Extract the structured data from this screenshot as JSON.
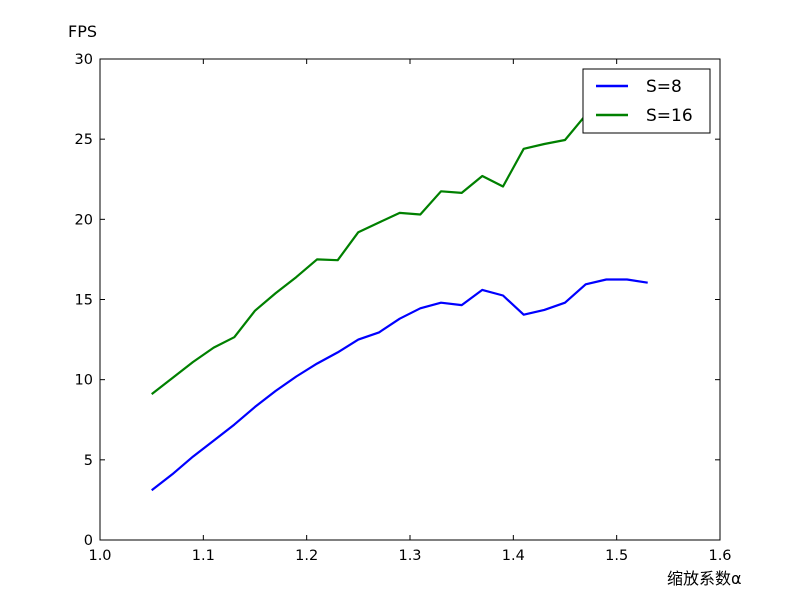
{
  "chart_data": {
    "type": "line",
    "title": "",
    "xlabel": "缩放系数α",
    "ylabel": "FPS",
    "xlim": [
      1.0,
      1.6
    ],
    "ylim": [
      0,
      30
    ],
    "xticks": [
      "1.0",
      "1.1",
      "1.2",
      "1.3",
      "1.4",
      "1.5",
      "1.6"
    ],
    "yticks": [
      "0",
      "5",
      "10",
      "15",
      "20",
      "25",
      "30"
    ],
    "grid": false,
    "legend_position": "top-right",
    "series": [
      {
        "name": "S=8",
        "color": "#0000ff",
        "x": [
          1.05,
          1.07,
          1.09,
          1.11,
          1.13,
          1.15,
          1.17,
          1.19,
          1.21,
          1.23,
          1.25,
          1.27,
          1.29,
          1.31,
          1.33,
          1.35,
          1.37,
          1.39,
          1.41,
          1.43,
          1.45,
          1.47,
          1.49,
          1.51,
          1.53
        ],
        "y": [
          3.1,
          4.1,
          5.2,
          6.2,
          7.2,
          8.3,
          9.3,
          10.2,
          11.0,
          11.7,
          12.5,
          12.95,
          13.8,
          14.45,
          14.8,
          14.65,
          15.6,
          15.25,
          14.05,
          14.35,
          14.8,
          15.95,
          16.25,
          16.25,
          16.05
        ]
      },
      {
        "name": "S=16",
        "color": "#008000",
        "x": [
          1.05,
          1.07,
          1.09,
          1.11,
          1.13,
          1.15,
          1.17,
          1.19,
          1.21,
          1.23,
          1.25,
          1.27,
          1.29,
          1.31,
          1.33,
          1.35,
          1.37,
          1.39,
          1.41,
          1.43,
          1.45,
          1.47
        ],
        "y": [
          9.1,
          10.1,
          11.1,
          12.0,
          12.65,
          14.3,
          15.4,
          16.4,
          17.5,
          17.45,
          19.2,
          19.8,
          20.4,
          20.3,
          21.75,
          21.65,
          22.7,
          22.05,
          24.4,
          24.7,
          24.95,
          26.5
        ]
      }
    ]
  }
}
